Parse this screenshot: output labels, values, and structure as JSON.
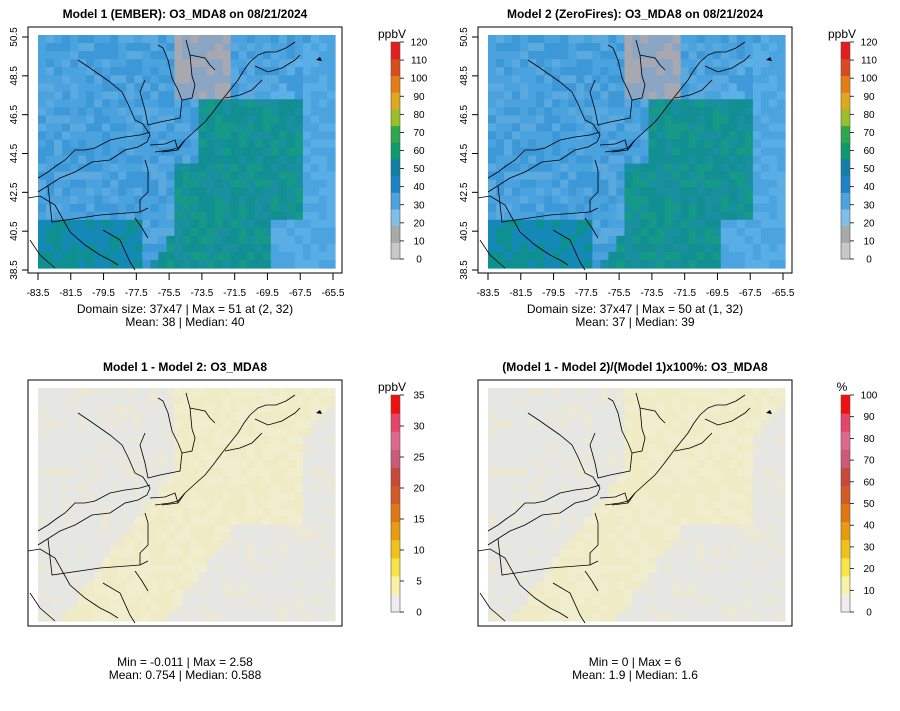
{
  "panels": [
    {
      "id": "p1",
      "title": "Model 1 (EMBER): O3_MDA8 on 08/21/2024",
      "stats_line1": "Domain size: 37x47 | Max = 51 at (2, 32)",
      "stats_line2": "Mean: 38 |  Median: 40",
      "show_axes": true,
      "field": "ozone",
      "colorbar": {
        "unit": "ppbV",
        "ticks": [
          "0",
          "10",
          "20",
          "30",
          "40",
          "50",
          "60",
          "70",
          "80",
          "90",
          "100",
          "110",
          "120"
        ],
        "max": 120,
        "palette": "ozone"
      }
    },
    {
      "id": "p2",
      "title": "Model 2 (ZeroFires): O3_MDA8 on 08/21/2024",
      "stats_line1": "Domain size: 37x47 | Max = 50 at (1, 32)",
      "stats_line2": "Mean: 37 |  Median: 39",
      "show_axes": true,
      "field": "ozone",
      "colorbar": {
        "unit": "ppbV",
        "ticks": [
          "0",
          "10",
          "20",
          "30",
          "40",
          "50",
          "60",
          "70",
          "80",
          "90",
          "100",
          "110",
          "120"
        ],
        "max": 120,
        "palette": "ozone"
      }
    },
    {
      "id": "p3",
      "title": "Model 1 - Model 2: O3_MDA8",
      "stats_line1": "Min = -0.011 | Max = 2.58",
      "stats_line2": "Mean: 0.754 |  Median: 0.588",
      "show_axes": false,
      "field": "diff",
      "colorbar": {
        "unit": "ppbV",
        "ticks": [
          "0",
          "5",
          "10",
          "15",
          "20",
          "25",
          "30",
          "35"
        ],
        "max": 35,
        "palette": "heat"
      }
    },
    {
      "id": "p4",
      "title": "(Model 1 - Model 2)/(Model 1)x100%: O3_MDA8",
      "stats_line1": "Min = 0 | Max = 6",
      "stats_line2": "Mean: 1.9 |  Median: 1.6",
      "show_axes": false,
      "field": "diff",
      "colorbar": {
        "unit": "%",
        "ticks": [
          "0",
          "10",
          "20",
          "30",
          "40",
          "50",
          "60",
          "70",
          "80",
          "90",
          "100"
        ],
        "max": 100,
        "palette": "heat"
      }
    }
  ],
  "x_ticks": [
    "-83.5",
    "-81.5",
    "-79.5",
    "-77.5",
    "-75.5",
    "-73.5",
    "-71.5",
    "-69.5",
    "-67.5",
    "-65.5"
  ],
  "y_ticks": [
    "38.5",
    "40.5",
    "42.5",
    "44.5",
    "46.5",
    "48.5",
    "50.5"
  ],
  "palettes": {
    "ozone": [
      "#c8c8c8",
      "#a9a9a9",
      "#7fbfe8",
      "#4ba3df",
      "#1d83c8",
      "#117fa8",
      "#0c9a6e",
      "#2ea84d",
      "#9bbf2a",
      "#e0a81c",
      "#e57d16",
      "#d94b1d",
      "#e21e1e"
    ],
    "heat": [
      "#ededed",
      "#f7f2a6",
      "#f7e44a",
      "#f0c219",
      "#e99a0f",
      "#df7812",
      "#d35a26",
      "#c8493a",
      "#cc5a76",
      "#dd6a8c",
      "#e6456a",
      "#f01010"
    ]
  }
}
